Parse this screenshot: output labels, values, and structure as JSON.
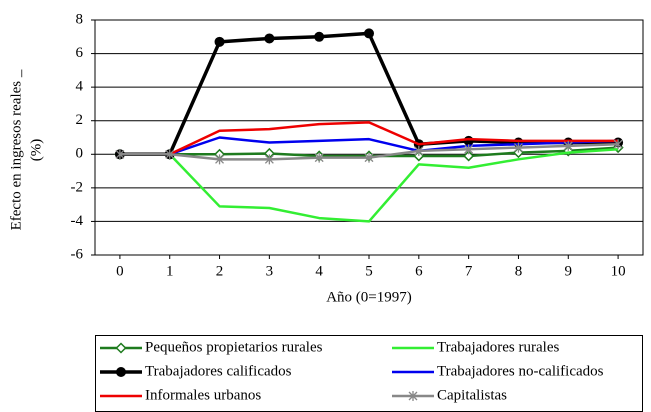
{
  "chart_data": {
    "type": "line",
    "y_label": [
      "Efecto en ingresos reales _",
      "(%)"
    ],
    "x_label": "Año (0=1997)",
    "x": [
      0,
      1,
      2,
      3,
      4,
      5,
      6,
      7,
      8,
      9,
      10
    ],
    "xlim": [
      -0.5,
      10.5
    ],
    "xticks": [
      0,
      1,
      2,
      3,
      4,
      5,
      6,
      7,
      8,
      9,
      10
    ],
    "ylim": [
      -6,
      8
    ],
    "yticks": [
      -6,
      -4,
      -2,
      0,
      2,
      4,
      6,
      8
    ],
    "grid": true,
    "legend": "bottom",
    "series": [
      {
        "name": "Pequeños propietarios rurales",
        "color": "#1e7b1e",
        "marker": "diamond",
        "values": [
          0,
          0,
          0,
          0.05,
          -0.1,
          -0.1,
          -0.1,
          -0.1,
          0.1,
          0.2,
          0.4
        ]
      },
      {
        "name": "Trabajadores rurales",
        "color": "#33ee33",
        "marker": "none",
        "values": [
          0,
          0,
          -3.1,
          -3.2,
          -3.8,
          -4.0,
          -0.6,
          -0.8,
          -0.3,
          0.1,
          0.3
        ]
      },
      {
        "name": "Trabajadores calificados",
        "color": "#000000",
        "marker": "circle",
        "values": [
          0,
          0,
          6.7,
          6.9,
          7.0,
          7.2,
          0.6,
          0.8,
          0.7,
          0.7,
          0.7
        ]
      },
      {
        "name": "Trabajadores no-calificados",
        "color": "#0000ee",
        "marker": "none",
        "values": [
          0,
          0,
          1.0,
          0.7,
          0.8,
          0.9,
          0.2,
          0.5,
          0.6,
          0.7,
          0.8
        ]
      },
      {
        "name": "Informales urbanos",
        "color": "#ee0000",
        "marker": "none",
        "values": [
          0,
          0,
          1.4,
          1.5,
          1.8,
          1.9,
          0.6,
          0.9,
          0.8,
          0.8,
          0.8
        ]
      },
      {
        "name": "Capitalistas",
        "color": "#888888",
        "marker": "star",
        "values": [
          0,
          0,
          -0.3,
          -0.3,
          -0.2,
          -0.2,
          0.2,
          0.3,
          0.4,
          0.5,
          0.6
        ]
      }
    ]
  }
}
